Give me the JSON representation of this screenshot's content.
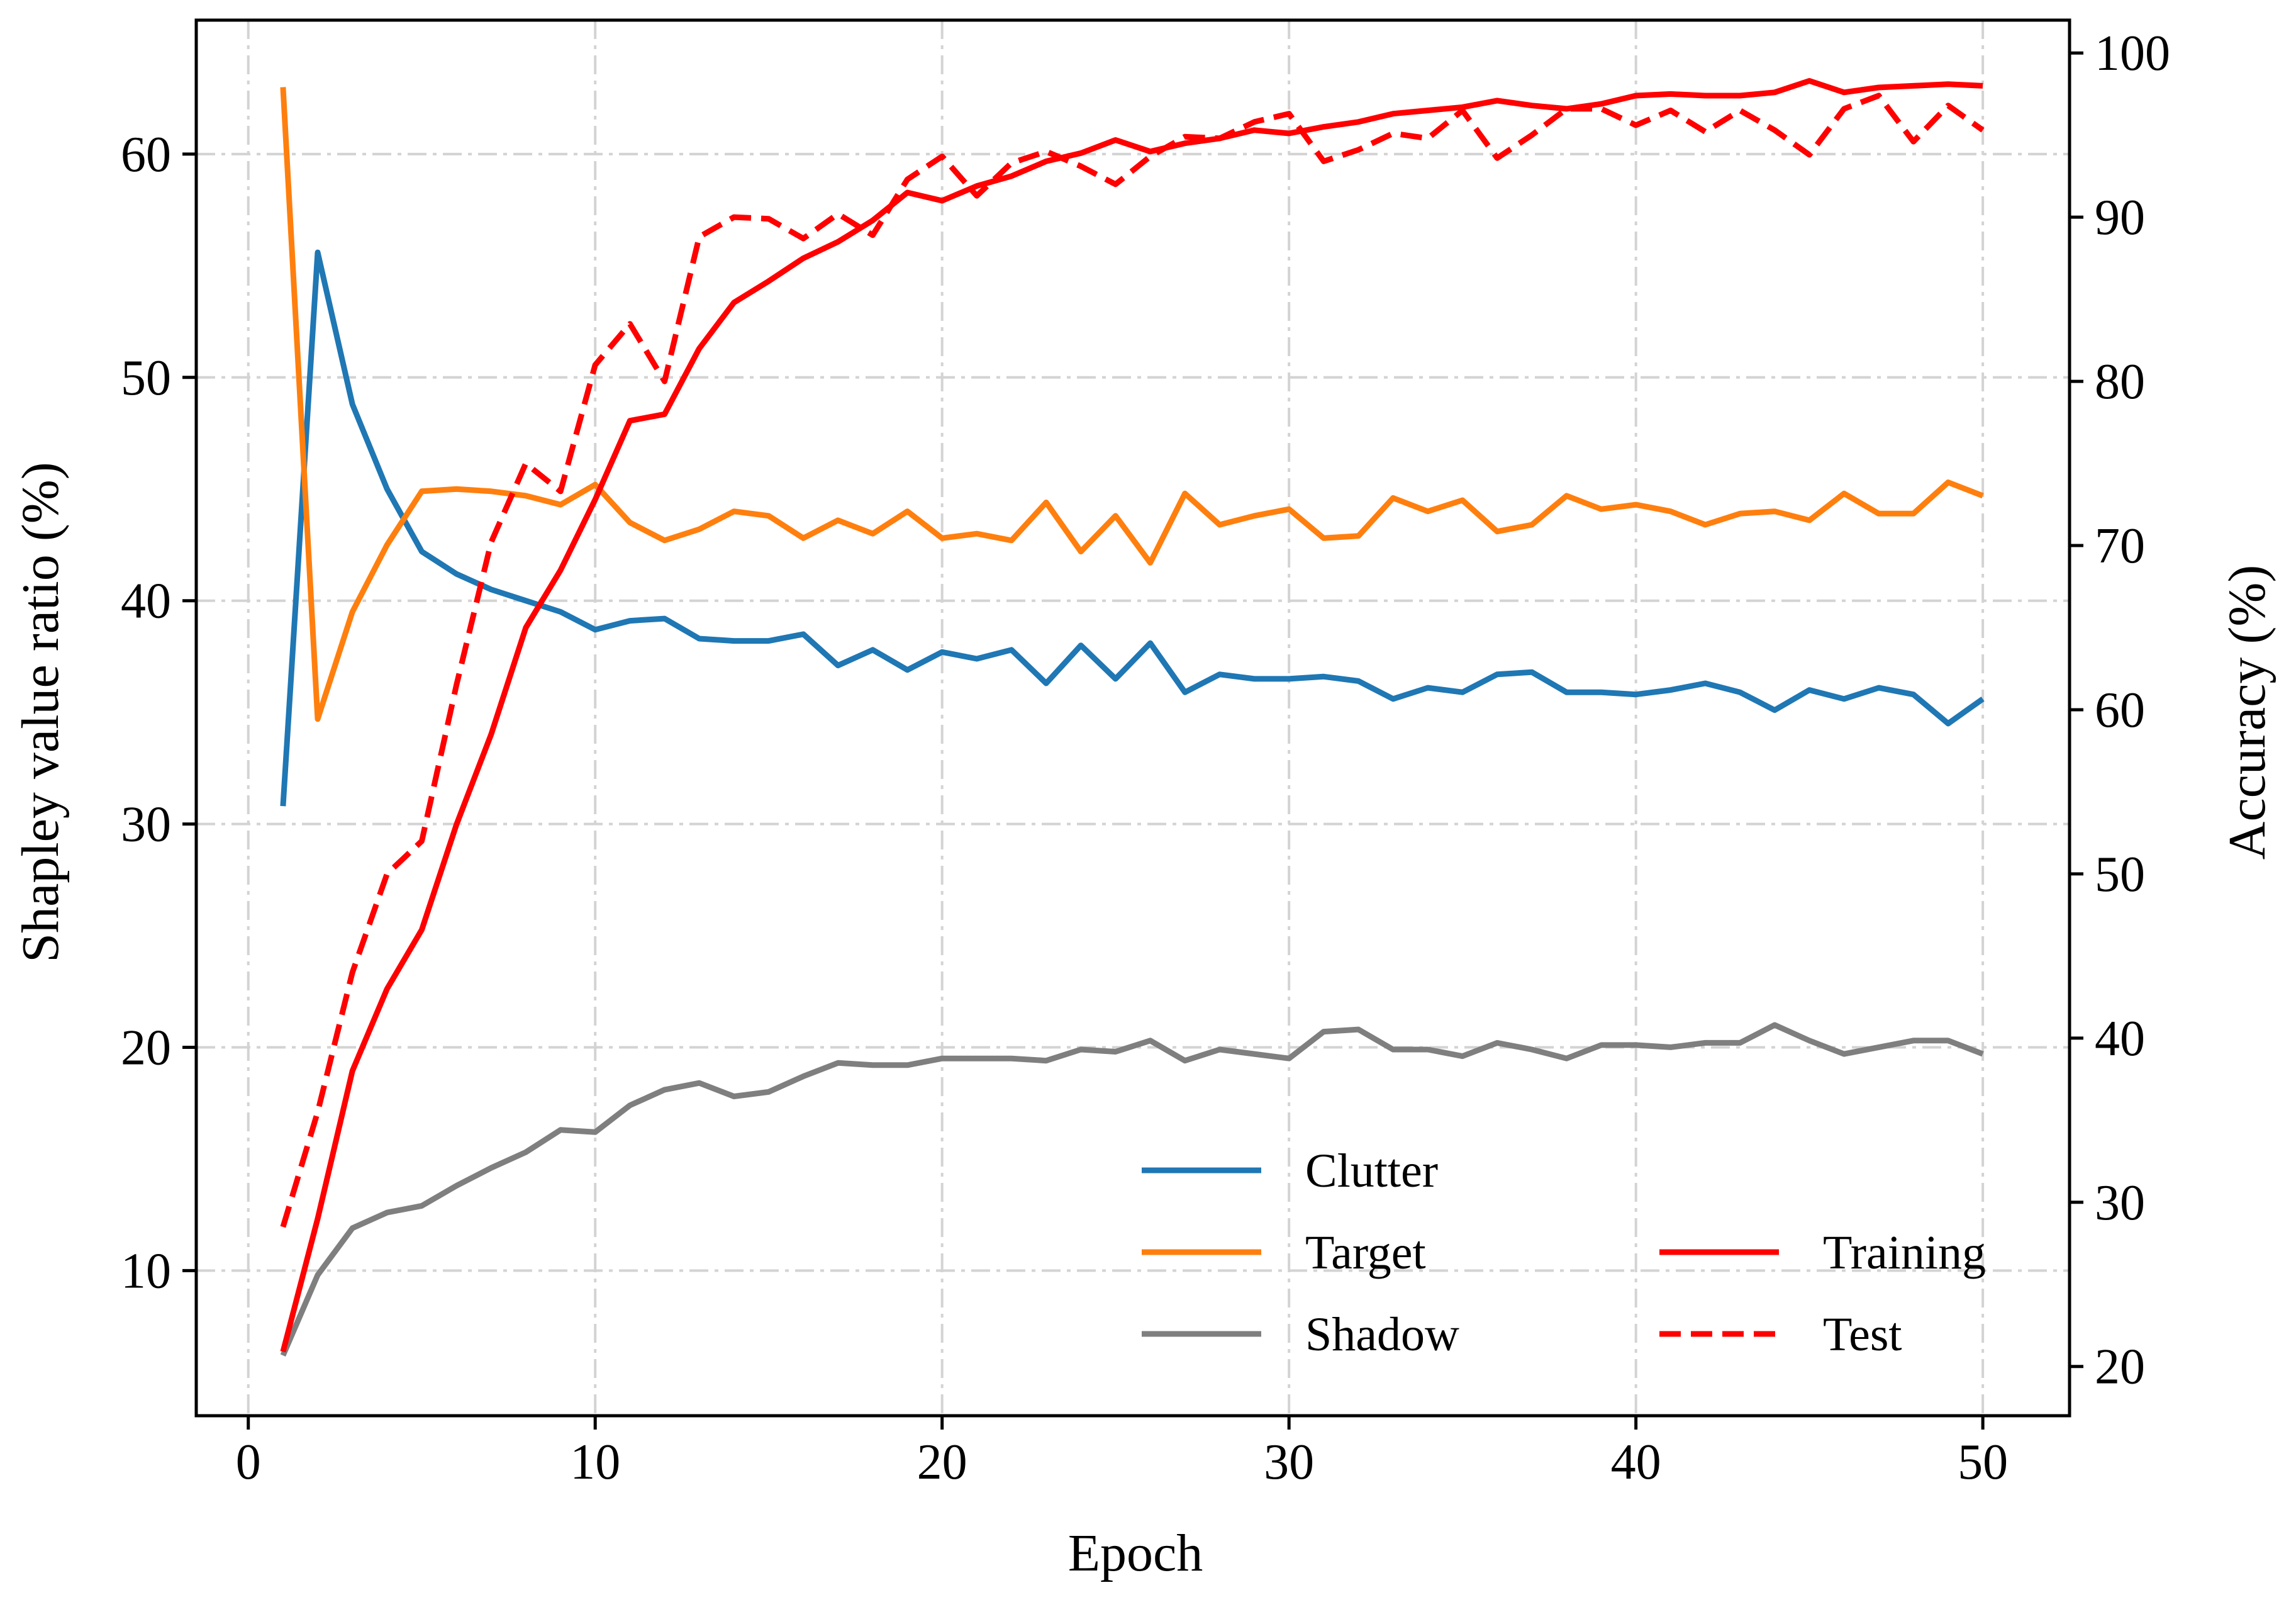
{
  "chart_data": {
    "type": "line",
    "title": "",
    "xlabel": "Epoch",
    "ylabel_left": "Shapley value ratio (%)",
    "ylabel_right": "Accuracy (%)",
    "xlim": [
      -1.5,
      52.5
    ],
    "ylim_left": [
      3.5,
      66
    ],
    "ylim_right": [
      17,
      102
    ],
    "xticks": [
      0,
      10,
      20,
      30,
      40,
      50
    ],
    "yticks_left": [
      10,
      20,
      30,
      40,
      50,
      60
    ],
    "yticks_right": [
      20,
      30,
      40,
      50,
      60,
      70,
      80,
      90,
      100
    ],
    "grid": true,
    "legend_position": "lower-right",
    "x": [
      1,
      2,
      3,
      4,
      5,
      6,
      7,
      8,
      9,
      10,
      11,
      12,
      13,
      14,
      15,
      16,
      17,
      18,
      19,
      20,
      21,
      22,
      23,
      24,
      25,
      26,
      27,
      28,
      29,
      30,
      31,
      32,
      33,
      34,
      35,
      36,
      37,
      38,
      39,
      40,
      41,
      42,
      43,
      44,
      45,
      46,
      47,
      48,
      49,
      50
    ],
    "series": [
      {
        "name": "Clutter",
        "axis": "left",
        "color": "#1f77b4",
        "style": "solid",
        "values": [
          30.8,
          55.6,
          48.8,
          45.0,
          42.2,
          41.2,
          40.5,
          40.0,
          39.5,
          38.7,
          39.1,
          39.2,
          38.3,
          38.2,
          38.2,
          38.5,
          37.1,
          37.8,
          36.9,
          37.7,
          37.4,
          37.8,
          36.3,
          38.0,
          36.5,
          38.1,
          35.9,
          36.7,
          36.5,
          36.5,
          36.6,
          36.4,
          35.6,
          36.1,
          35.9,
          36.7,
          36.8,
          35.9,
          35.9,
          35.8,
          36.0,
          36.3,
          35.9,
          35.1,
          36.0,
          35.6,
          36.1,
          35.8,
          34.5,
          35.6
        ]
      },
      {
        "name": "Target",
        "axis": "left",
        "color": "#ff7f0e",
        "style": "solid",
        "values": [
          63.0,
          34.7,
          39.5,
          42.5,
          44.9,
          45.0,
          44.9,
          44.7,
          44.3,
          45.2,
          43.5,
          42.7,
          43.2,
          44.0,
          43.8,
          42.8,
          43.6,
          43.0,
          44.0,
          42.8,
          43.0,
          42.7,
          44.4,
          42.2,
          43.8,
          41.7,
          44.8,
          43.4,
          43.8,
          44.1,
          42.8,
          42.9,
          44.6,
          44.0,
          44.5,
          43.1,
          43.4,
          44.7,
          44.1,
          44.3,
          44.0,
          43.4,
          43.9,
          44.0,
          43.6,
          44.8,
          43.9,
          43.9,
          45.3,
          44.7
        ]
      },
      {
        "name": "Shadow",
        "axis": "left",
        "color": "#7f7f7f",
        "style": "solid",
        "values": [
          6.2,
          9.8,
          11.9,
          12.6,
          12.9,
          13.8,
          14.6,
          15.3,
          16.3,
          16.2,
          17.4,
          18.1,
          18.4,
          17.8,
          18.0,
          18.7,
          19.3,
          19.2,
          19.2,
          19.5,
          19.5,
          19.5,
          19.4,
          19.9,
          19.8,
          20.3,
          19.4,
          19.9,
          19.7,
          19.5,
          20.7,
          20.8,
          19.9,
          19.9,
          19.6,
          20.2,
          19.9,
          19.5,
          20.1,
          20.1,
          20.0,
          20.2,
          20.2,
          21.0,
          20.3,
          19.7,
          20.0,
          20.3,
          20.3,
          19.7
        ]
      },
      {
        "name": "Training",
        "axis": "right",
        "color": "#ff0000",
        "style": "solid",
        "values": [
          20.9,
          29.0,
          38.0,
          43.0,
          46.6,
          53.0,
          58.5,
          65.0,
          68.5,
          72.8,
          77.6,
          78.0,
          82.0,
          84.8,
          86.1,
          87.5,
          88.5,
          89.8,
          91.5,
          91.0,
          91.9,
          92.5,
          93.4,
          93.9,
          94.7,
          94.0,
          94.5,
          94.8,
          95.3,
          95.1,
          95.5,
          95.8,
          96.3,
          96.5,
          96.7,
          97.1,
          96.8,
          96.6,
          96.9,
          97.4,
          97.5,
          97.4,
          97.4,
          97.6,
          98.3,
          97.6,
          97.9,
          98.0,
          98.1,
          98.0
        ]
      },
      {
        "name": "Test",
        "axis": "right",
        "color": "#ff0000",
        "style": "dashed",
        "values": [
          28.5,
          35.5,
          44.0,
          50.0,
          52.0,
          61.5,
          70.2,
          75.0,
          73.3,
          81.0,
          83.5,
          80.0,
          88.8,
          90.0,
          89.9,
          88.7,
          90.2,
          88.9,
          92.3,
          93.7,
          91.3,
          93.3,
          94.0,
          93.1,
          92.0,
          93.7,
          94.9,
          94.8,
          95.8,
          96.3,
          93.4,
          94.1,
          95.1,
          94.8,
          96.5,
          93.6,
          95.0,
          96.6,
          96.6,
          95.6,
          96.5,
          95.2,
          96.5,
          95.3,
          93.8,
          96.6,
          97.4,
          94.6,
          96.8,
          95.3
        ]
      }
    ]
  }
}
